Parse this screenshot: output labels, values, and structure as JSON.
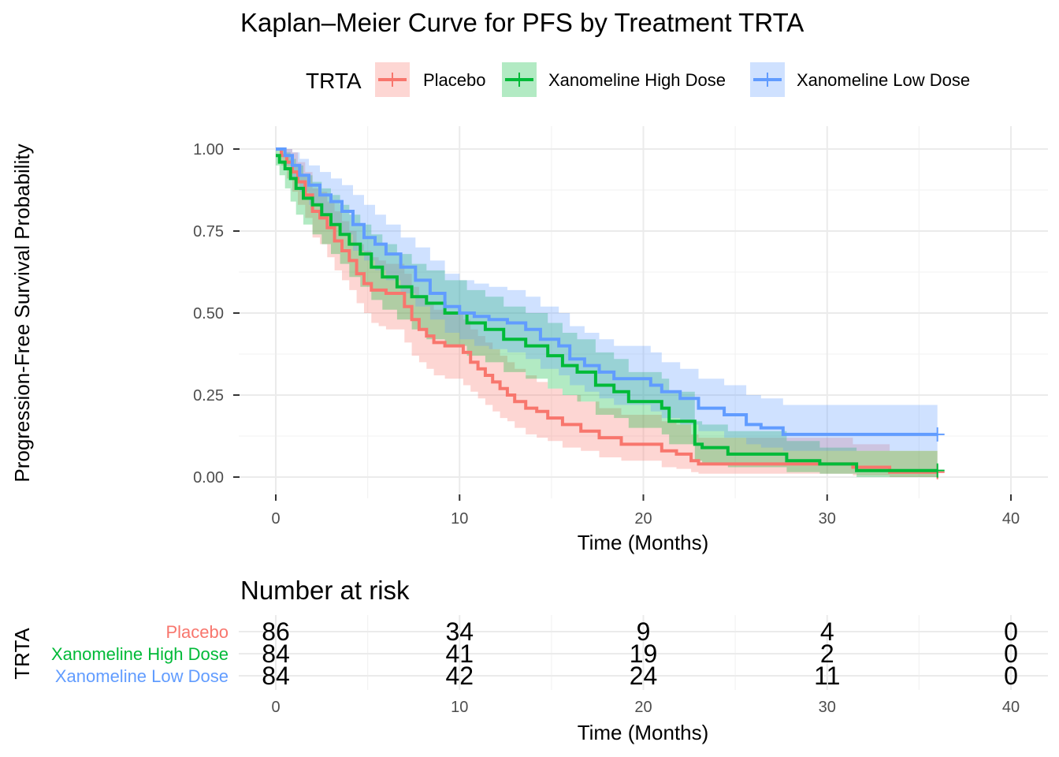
{
  "chart_data": {
    "type": "line",
    "subtype": "kaplan-meier",
    "title": "Kaplan–Meier Curve for PFS by Treatment TRTA",
    "xlabel": "Time (Months)",
    "ylabel": "Progression-Free Survival Probability",
    "xlim": [
      -2,
      42
    ],
    "ylim": [
      -0.05,
      1.05
    ],
    "xticks": [
      0,
      10,
      20,
      30,
      40
    ],
    "xtick_labels": [
      "0",
      "10",
      "20",
      "30",
      "40"
    ],
    "yticks": [
      0,
      0.25,
      0.5,
      0.75,
      1.0
    ],
    "ytick_labels": [
      "0.00",
      "0.25",
      "0.50",
      "0.75",
      "1.00"
    ],
    "grid": true,
    "legend": {
      "title": "TRTA",
      "position": "top",
      "entries": [
        "Placebo",
        "Xanomeline High Dose",
        "Xanomeline Low Dose"
      ]
    },
    "series": [
      {
        "name": "Placebo",
        "color": "#F8766D",
        "x": [
          0,
          0.3,
          0.6,
          0.9,
          1.2,
          1.6,
          2.0,
          2.4,
          2.8,
          3.2,
          3.6,
          4.0,
          4.4,
          4.8,
          5.2,
          5.6,
          6.0,
          7.0,
          7.4,
          7.8,
          8.2,
          8.6,
          9.2,
          10.2,
          10.6,
          11.0,
          11.4,
          11.8,
          12.2,
          12.6,
          13.0,
          13.6,
          14.2,
          14.8,
          15.6,
          16.6,
          17.6,
          18.8,
          21.0,
          21.8,
          22.6,
          23.0,
          30.0,
          31.4,
          33.4,
          36.0
        ],
        "y": [
          1.0,
          0.98,
          0.96,
          0.93,
          0.9,
          0.86,
          0.81,
          0.79,
          0.76,
          0.72,
          0.69,
          0.66,
          0.62,
          0.59,
          0.57,
          0.57,
          0.56,
          0.52,
          0.48,
          0.45,
          0.43,
          0.41,
          0.4,
          0.38,
          0.35,
          0.33,
          0.31,
          0.29,
          0.27,
          0.25,
          0.23,
          0.21,
          0.2,
          0.18,
          0.16,
          0.14,
          0.12,
          0.1,
          0.08,
          0.07,
          0.05,
          0.04,
          0.04,
          0.03,
          0.015,
          0.015
        ],
        "ci_lower": [
          1.0,
          0.95,
          0.91,
          0.87,
          0.83,
          0.79,
          0.73,
          0.71,
          0.67,
          0.63,
          0.6,
          0.57,
          0.53,
          0.5,
          0.47,
          0.46,
          0.45,
          0.41,
          0.37,
          0.35,
          0.33,
          0.31,
          0.3,
          0.28,
          0.26,
          0.24,
          0.22,
          0.2,
          0.18,
          0.17,
          0.15,
          0.13,
          0.12,
          0.11,
          0.09,
          0.08,
          0.06,
          0.05,
          0.03,
          0.025,
          0.015,
          0.01,
          0.01,
          0.005,
          0.0,
          0.0
        ],
        "ci_upper": [
          1.0,
          1.0,
          1.0,
          0.99,
          0.96,
          0.93,
          0.88,
          0.87,
          0.84,
          0.81,
          0.78,
          0.75,
          0.71,
          0.69,
          0.67,
          0.66,
          0.65,
          0.62,
          0.58,
          0.55,
          0.53,
          0.51,
          0.5,
          0.48,
          0.45,
          0.43,
          0.41,
          0.39,
          0.37,
          0.35,
          0.33,
          0.31,
          0.29,
          0.27,
          0.25,
          0.23,
          0.21,
          0.19,
          0.17,
          0.16,
          0.13,
          0.12,
          0.12,
          0.1,
          0.08,
          0.08
        ],
        "censor_end": [
          36.0,
          0.015
        ]
      },
      {
        "name": "Xanomeline High Dose",
        "color": "#00BA38",
        "x": [
          0,
          0.2,
          0.5,
          0.8,
          1.1,
          1.5,
          2.0,
          2.5,
          3.0,
          3.5,
          4.0,
          4.6,
          5.2,
          5.8,
          6.6,
          7.4,
          8.2,
          9.2,
          10.4,
          11.4,
          12.4,
          13.6,
          14.8,
          15.6,
          16.4,
          17.4,
          18.4,
          19.2,
          21.0,
          21.4,
          22.8,
          23.2,
          24.6,
          27.8,
          29.6,
          31.6,
          36.0
        ],
        "y": [
          0.98,
          0.96,
          0.94,
          0.91,
          0.88,
          0.85,
          0.83,
          0.8,
          0.77,
          0.74,
          0.71,
          0.68,
          0.64,
          0.61,
          0.58,
          0.55,
          0.53,
          0.5,
          0.47,
          0.45,
          0.42,
          0.4,
          0.37,
          0.34,
          0.32,
          0.28,
          0.26,
          0.23,
          0.21,
          0.17,
          0.1,
          0.09,
          0.07,
          0.05,
          0.04,
          0.02,
          0.02
        ],
        "ci_lower": [
          0.95,
          0.92,
          0.88,
          0.84,
          0.8,
          0.77,
          0.74,
          0.71,
          0.68,
          0.65,
          0.61,
          0.58,
          0.54,
          0.51,
          0.48,
          0.45,
          0.42,
          0.4,
          0.37,
          0.35,
          0.32,
          0.3,
          0.27,
          0.25,
          0.23,
          0.19,
          0.18,
          0.15,
          0.13,
          0.1,
          0.05,
          0.04,
          0.03,
          0.015,
          0.01,
          0.0,
          0.0
        ],
        "ci_upper": [
          1.0,
          1.0,
          0.99,
          0.97,
          0.95,
          0.92,
          0.9,
          0.88,
          0.86,
          0.83,
          0.8,
          0.77,
          0.74,
          0.71,
          0.68,
          0.65,
          0.63,
          0.6,
          0.57,
          0.55,
          0.52,
          0.5,
          0.47,
          0.44,
          0.42,
          0.38,
          0.36,
          0.32,
          0.3,
          0.26,
          0.17,
          0.16,
          0.14,
          0.11,
          0.09,
          0.08,
          0.08
        ],
        "censor_end": [
          36.0,
          0.02
        ]
      },
      {
        "name": "Xanomeline Low Dose",
        "color": "#619CFF",
        "x": [
          0,
          0.5,
          0.9,
          1.3,
          1.8,
          2.4,
          3.0,
          3.6,
          4.2,
          4.8,
          5.4,
          6.0,
          6.8,
          7.6,
          8.4,
          9.2,
          10.0,
          10.8,
          11.6,
          12.6,
          13.6,
          14.4,
          15.4,
          16.0,
          16.8,
          17.6,
          18.4,
          20.4,
          21.0,
          22.0,
          23.0,
          24.4,
          25.6,
          26.4,
          27.6,
          36.0
        ],
        "y": [
          1.0,
          0.98,
          0.95,
          0.92,
          0.89,
          0.86,
          0.84,
          0.81,
          0.77,
          0.73,
          0.71,
          0.68,
          0.64,
          0.6,
          0.56,
          0.52,
          0.5,
          0.49,
          0.48,
          0.47,
          0.45,
          0.42,
          0.4,
          0.36,
          0.34,
          0.32,
          0.3,
          0.28,
          0.26,
          0.24,
          0.21,
          0.19,
          0.16,
          0.15,
          0.13,
          0.13
        ],
        "ci_lower": [
          1.0,
          0.95,
          0.91,
          0.87,
          0.83,
          0.8,
          0.77,
          0.74,
          0.69,
          0.66,
          0.63,
          0.6,
          0.56,
          0.52,
          0.48,
          0.44,
          0.42,
          0.4,
          0.39,
          0.38,
          0.36,
          0.33,
          0.31,
          0.28,
          0.26,
          0.24,
          0.22,
          0.2,
          0.18,
          0.16,
          0.14,
          0.12,
          0.1,
          0.09,
          0.08,
          0.08
        ],
        "ci_upper": [
          1.0,
          1.0,
          0.99,
          0.97,
          0.95,
          0.93,
          0.91,
          0.89,
          0.86,
          0.83,
          0.8,
          0.77,
          0.73,
          0.7,
          0.66,
          0.62,
          0.6,
          0.59,
          0.58,
          0.57,
          0.55,
          0.52,
          0.5,
          0.46,
          0.44,
          0.42,
          0.4,
          0.38,
          0.35,
          0.33,
          0.3,
          0.28,
          0.25,
          0.24,
          0.22,
          0.22
        ],
        "censor_end": [
          36.0,
          0.13
        ]
      }
    ],
    "risk_table": {
      "title": "Number at risk",
      "ylabel": "TRTA",
      "xlabel": "Time (Months)",
      "times": [
        0,
        10,
        20,
        30,
        40
      ],
      "time_labels": [
        "0",
        "10",
        "20",
        "30",
        "40"
      ],
      "strata": [
        {
          "name": "Placebo",
          "color": "#F8766D",
          "counts": [
            "86",
            "34",
            "9",
            "4",
            "0"
          ]
        },
        {
          "name": "Xanomeline High Dose",
          "color": "#00BA38",
          "counts": [
            "84",
            "41",
            "19",
            "2",
            "0"
          ]
        },
        {
          "name": "Xanomeline Low Dose",
          "color": "#619CFF",
          "counts": [
            "84",
            "42",
            "24",
            "11",
            "0"
          ]
        }
      ]
    }
  }
}
